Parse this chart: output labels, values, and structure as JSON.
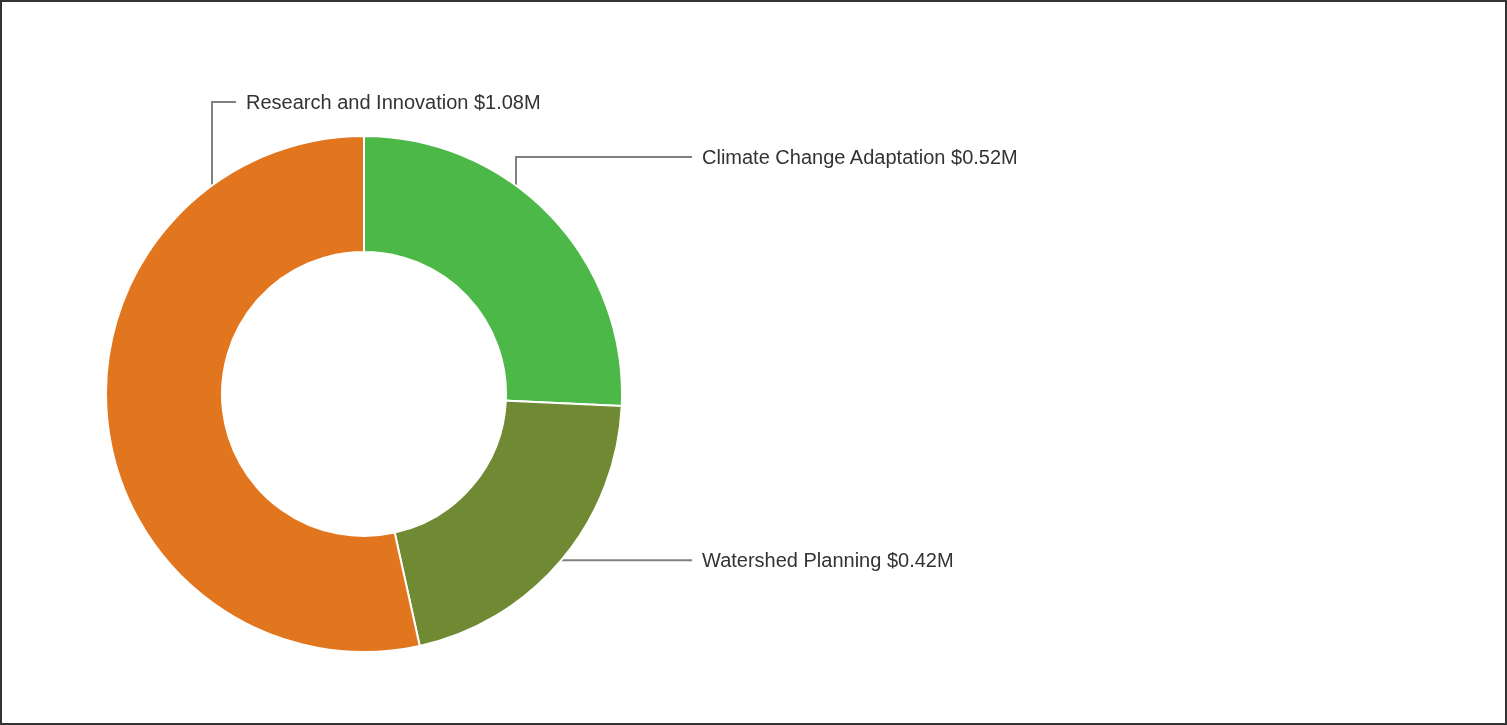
{
  "chart_data": {
    "type": "donut",
    "categories": [
      "Climate Change Adaptation",
      "Watershed Planning",
      "Research and Innovation"
    ],
    "values": [
      0.52,
      0.42,
      1.08
    ],
    "value_labels": [
      "$0.52M",
      "$0.42M",
      "$1.08M"
    ],
    "colors": [
      "#4cb848",
      "#6f8a32",
      "#e2761f"
    ],
    "legend": false
  }
}
